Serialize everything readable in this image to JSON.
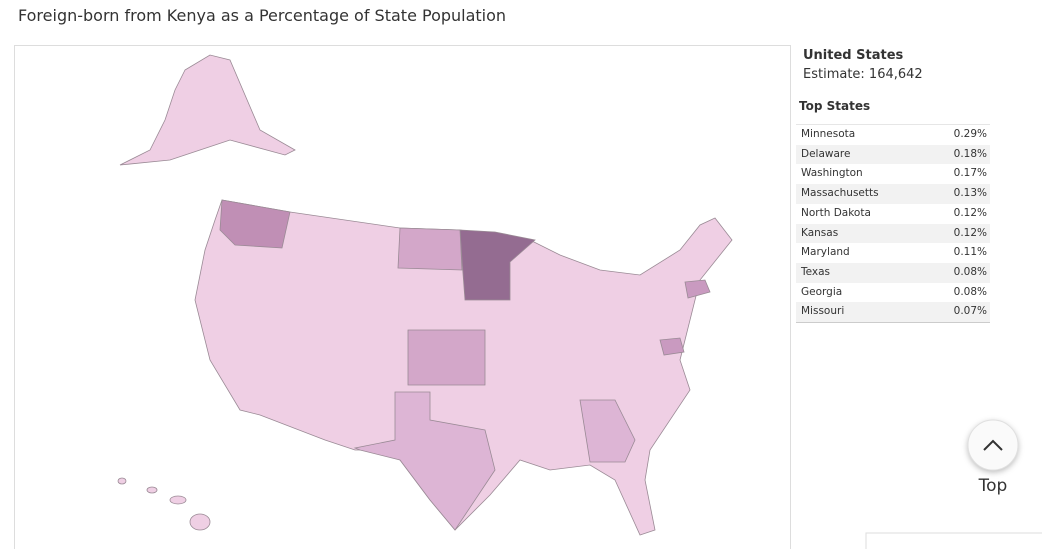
{
  "title": "Foreign-born from Kenya as a Percentage of State Population",
  "summary": {
    "region": "United States",
    "estimate": "Estimate: 164,642"
  },
  "top_states": {
    "heading": "Top States",
    "rows": [
      [
        "Minnesota",
        "0.29%"
      ],
      [
        "Delaware",
        "0.18%"
      ],
      [
        "Washington",
        "0.17%"
      ],
      [
        "Massachusetts",
        "0.13%"
      ],
      [
        "North Dakota",
        "0.12%"
      ],
      [
        "Kansas",
        "0.12%"
      ],
      [
        "Maryland",
        "0.11%"
      ],
      [
        "Texas",
        "0.08%"
      ],
      [
        "Georgia",
        "0.08%"
      ],
      [
        "Missouri",
        "0.07%"
      ]
    ]
  },
  "top_button": {
    "label": "Top"
  }
}
